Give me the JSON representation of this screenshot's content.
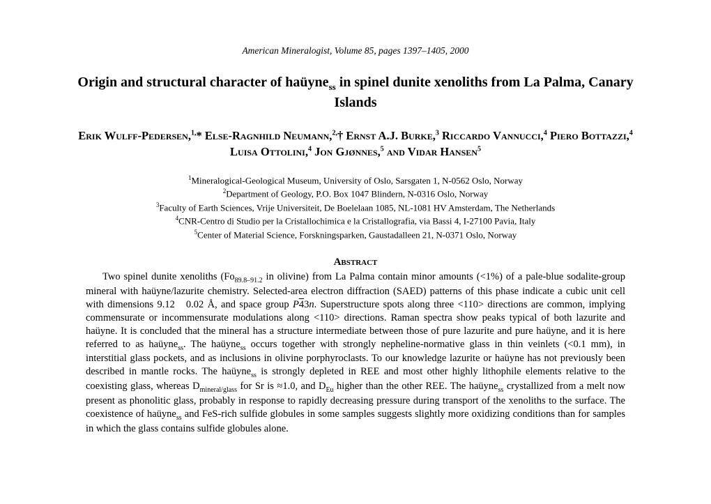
{
  "journal_header": "American Mineralogist, Volume 85, pages 1397–1405, 2000",
  "title_part1": "Origin and structural character of haüyne",
  "title_sub": "ss",
  "title_part2": " in spinel dunite xenoliths from La Palma, Canary Islands",
  "authors_html": "Erik Wulff-Pedersen,<sup>1,</sup>* Else-Ragnhild Neumann,<sup>2,</sup>† Ernst A.J. Burke,<sup>3</sup> Riccardo Vannucci,<sup>4</sup> Piero Bottazzi,<sup>4</sup> Luisa Ottolini,<sup>4</sup> Jon Gjønnes,<sup>5</sup> and Vidar Hansen<sup>5</sup>",
  "affiliations": [
    {
      "num": "1",
      "text": "Mineralogical-Geological Museum, University of Oslo, Sarsgaten 1, N-0562 Oslo, Norway"
    },
    {
      "num": "2",
      "text": "Department of Geology, P.O. Box 1047 Blindern, N-0316 Oslo, Norway"
    },
    {
      "num": "3",
      "text": "Faculty of Earth Sciences, Vrije Universiteit, De Boelelaan 1085, NL-1081 HV Amsterdam, The Netherlands"
    },
    {
      "num": "4",
      "text": "CNR-Centro di Studio per la Cristallochimica e la Cristallografia, via Bassi 4, I-27100 Pavia, Italy"
    },
    {
      "num": "5",
      "text": "Center of Material Science, Forskningsparken, Gaustadalleen 21, N-0371 Oslo, Norway"
    }
  ],
  "abstract_heading": "Abstract",
  "abstract_html": "Two spinel dunite xenoliths (Fo<sub>89.8–91.2</sub> in olivine) from La Palma contain minor amounts (&lt;1%) of a pale-blue sodalite-group mineral with haüyne/lazurite chemistry. Selected-area electron diffraction (SAED) patterns of this phase indicate a cubic unit cell with dimensions 9.12&nbsp;&nbsp;&nbsp;0.02 Å, and space group <i>P</i><span class=\"overline\">4</span>3<i>n</i>. Superstructure spots along three &lt;110&gt; directions are common, implying commensurate or incommensurate modulations along &lt;110&gt; directions. Raman spectra show peaks typical of both lazurite and haüyne. It is concluded that the mineral has a structure intermediate between those of pure lazurite and pure haüyne, and it is here referred to as haüyne<sub>ss</sub>. The haüyne<sub>ss</sub> occurs together with strongly nepheline-normative glass in thin veinlets (&lt;0.1 mm), in interstitial glass pockets, and as inclusions in olivine porphyroclasts. To our knowledge lazurite or haüyne has not previously been described in mantle rocks. The haüyne<sub>ss</sub> is strongly depleted in REE and most other highly lithophile elements relative to the coexisting glass, whereas D<sub>mineral/glass</sub> for Sr is ≈1.0, and D<sub>Eu</sub> higher than the other REE. The haüyne<sub>ss</sub> crystallized from a melt now present as phonolitic glass, probably in response to rapidly decreasing pressure during transport of the xenoliths to the surface. The coexistence of haüyne<sub>ss</sub> and FeS-rich sulfide globules in some samples suggests slightly more oxidizing conditions than for samples in which the glass contains sulfide globules alone.",
  "typography": {
    "title_fontsize": 20,
    "authors_fontsize": 16.5,
    "affiliations_fontsize": 13,
    "abstract_fontsize": 14.5,
    "journal_header_fontsize": 13.5,
    "background_color": "#ffffff",
    "text_color": "#000000",
    "font_family": "Times New Roman"
  }
}
